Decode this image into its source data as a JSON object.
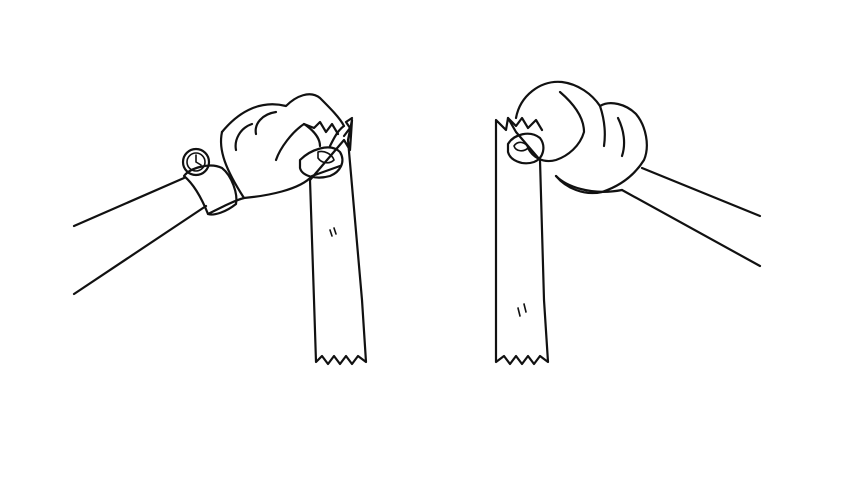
{
  "scene": {
    "ink_color": "#111111",
    "background_color": "#ffffff",
    "left_wrist_item_icon": "wristwatch-icon"
  }
}
